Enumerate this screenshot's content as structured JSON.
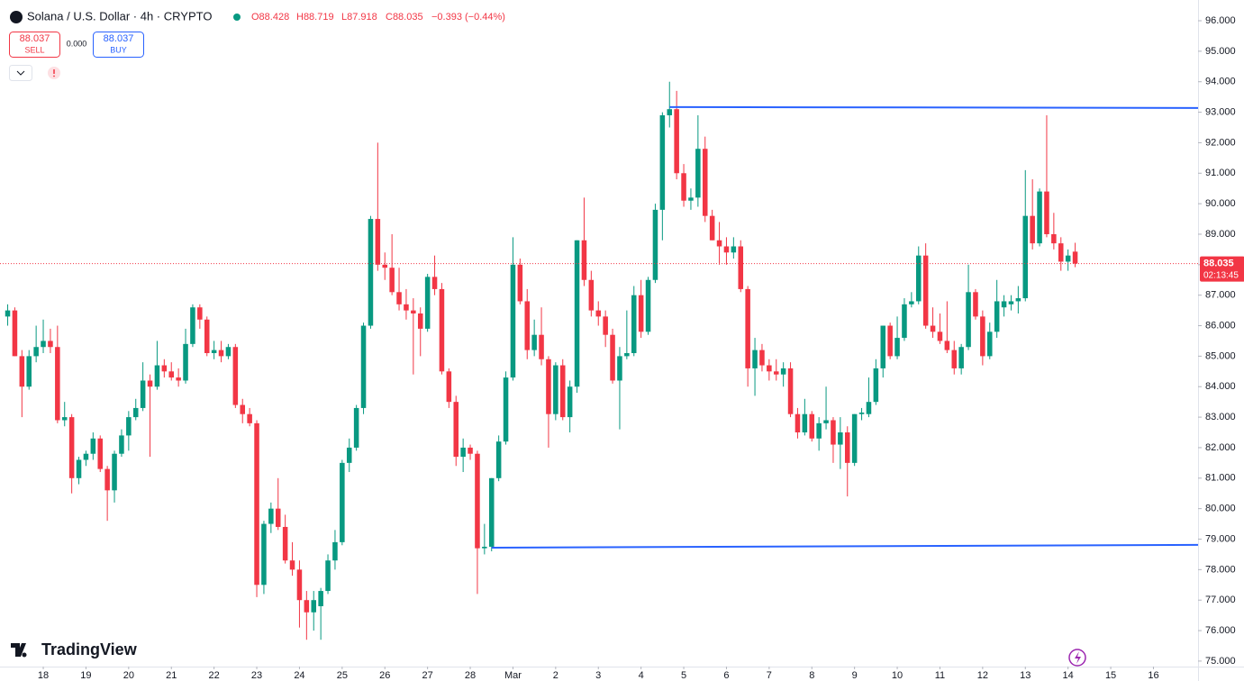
{
  "header": {
    "symbol": "Solana / U.S. Dollar · 4h · CRYPTO",
    "open": "O88.428",
    "high": "H88.719",
    "low": "L87.918",
    "close": "C88.035",
    "change": "−0.393 (−0.44%)"
  },
  "trade": {
    "sell_price": "88.037",
    "sell_label": "SELL",
    "spread": "0.000",
    "buy_price": "88.037",
    "buy_label": "BUY"
  },
  "logo": "TradingView",
  "chart_data": {
    "type": "candlestick",
    "up_color": "#089981",
    "down_color": "#f23645",
    "xlim": [
      -1.08,
      167.27
    ],
    "ylim": [
      74.82,
      96.68
    ],
    "xticks": [
      {
        "value": 5,
        "label": "18"
      },
      {
        "value": 11,
        "label": "19"
      },
      {
        "value": 17,
        "label": "20"
      },
      {
        "value": 23,
        "label": "21"
      },
      {
        "value": 29,
        "label": "22"
      },
      {
        "value": 35,
        "label": "23"
      },
      {
        "value": 41,
        "label": "24"
      },
      {
        "value": 47,
        "label": "25"
      },
      {
        "value": 53,
        "label": "26"
      },
      {
        "value": 59,
        "label": "27"
      },
      {
        "value": 65,
        "label": "28"
      },
      {
        "value": 71,
        "label": "Mar"
      },
      {
        "value": 77,
        "label": "2"
      },
      {
        "value": 83,
        "label": "3"
      },
      {
        "value": 89,
        "label": "4"
      },
      {
        "value": 95,
        "label": "5"
      },
      {
        "value": 101,
        "label": "6"
      },
      {
        "value": 107,
        "label": "7"
      },
      {
        "value": 113,
        "label": "8"
      },
      {
        "value": 119,
        "label": "9"
      },
      {
        "value": 125,
        "label": "10"
      },
      {
        "value": 131,
        "label": "11"
      },
      {
        "value": 137,
        "label": "12"
      },
      {
        "value": 143,
        "label": "13"
      },
      {
        "value": 149,
        "label": "14"
      },
      {
        "value": 155,
        "label": "15"
      },
      {
        "value": 161,
        "label": "16"
      }
    ],
    "yticks": [
      {
        "value": 75,
        "label": "75.000"
      },
      {
        "value": 76,
        "label": "76.000"
      },
      {
        "value": 77,
        "label": "77.000"
      },
      {
        "value": 78,
        "label": "78.000"
      },
      {
        "value": 79,
        "label": "79.000"
      },
      {
        "value": 80,
        "label": "80.000"
      },
      {
        "value": 81,
        "label": "81.000"
      },
      {
        "value": 82,
        "label": "82.000"
      },
      {
        "value": 83,
        "label": "83.000"
      },
      {
        "value": 84,
        "label": "84.000"
      },
      {
        "value": 85,
        "label": "85.000"
      },
      {
        "value": 86,
        "label": "86.000"
      },
      {
        "value": 87,
        "label": "87.000"
      },
      {
        "value": 88,
        "label": "88.000"
      },
      {
        "value": 89,
        "label": "89.000"
      },
      {
        "value": 90,
        "label": "90.000"
      },
      {
        "value": 91,
        "label": "91.000"
      },
      {
        "value": 92,
        "label": "92.000"
      },
      {
        "value": 93,
        "label": "93.000"
      },
      {
        "value": 94,
        "label": "94.000"
      },
      {
        "value": 95,
        "label": "95.000"
      },
      {
        "value": 96,
        "label": "96.000"
      }
    ],
    "last_price": {
      "value": 88.035,
      "label": "88.035"
    },
    "countdown": "02:13:45",
    "last_price_color": "#f23645",
    "lines_color": "#2962ff",
    "lines": [
      {
        "start": 93,
        "values": [
          93.17,
          93.14
        ]
      },
      {
        "start": 68,
        "values": [
          78.72,
          78.81
        ]
      }
    ],
    "candles": [
      [
        86.3,
        86.7,
        86.0,
        86.5
      ],
      [
        86.5,
        86.6,
        85.0,
        85.0
      ],
      [
        85.0,
        85.2,
        83.0,
        84.0
      ],
      [
        84.0,
        85.2,
        83.9,
        85.0
      ],
      [
        85.0,
        86.0,
        84.8,
        85.3
      ],
      [
        85.3,
        86.2,
        85.1,
        85.5
      ],
      [
        85.5,
        85.9,
        85.1,
        85.3
      ],
      [
        85.3,
        86.0,
        82.8,
        82.9
      ],
      [
        82.9,
        83.5,
        82.7,
        83.0
      ],
      [
        83.0,
        83.1,
        80.5,
        81.0
      ],
      [
        81.0,
        81.7,
        80.8,
        81.6
      ],
      [
        81.6,
        81.9,
        81.4,
        81.8
      ],
      [
        81.8,
        82.5,
        81.6,
        82.3
      ],
      [
        82.3,
        82.4,
        81.2,
        81.3
      ],
      [
        81.3,
        81.4,
        79.6,
        80.6
      ],
      [
        80.6,
        81.9,
        80.2,
        81.8
      ],
      [
        81.8,
        82.6,
        81.7,
        82.4
      ],
      [
        82.4,
        83.2,
        81.9,
        83.0
      ],
      [
        83.0,
        83.6,
        82.9,
        83.3
      ],
      [
        83.3,
        84.8,
        83.2,
        84.2
      ],
      [
        84.2,
        84.4,
        81.7,
        84.0
      ],
      [
        84.0,
        85.5,
        83.9,
        84.7
      ],
      [
        84.7,
        84.9,
        84.3,
        84.5
      ],
      [
        84.5,
        84.8,
        84.2,
        84.3
      ],
      [
        84.3,
        84.6,
        84.0,
        84.2
      ],
      [
        84.2,
        85.9,
        84.1,
        85.4
      ],
      [
        85.4,
        86.7,
        85.3,
        86.6
      ],
      [
        86.6,
        86.7,
        85.9,
        86.2
      ],
      [
        86.2,
        86.3,
        85.0,
        85.1
      ],
      [
        85.1,
        85.5,
        84.9,
        85.2
      ],
      [
        85.2,
        85.5,
        84.8,
        85.0
      ],
      [
        85.0,
        85.4,
        84.9,
        85.3
      ],
      [
        85.3,
        85.4,
        83.3,
        83.4
      ],
      [
        83.4,
        83.6,
        82.8,
        83.1
      ],
      [
        83.1,
        83.3,
        82.7,
        82.8
      ],
      [
        82.8,
        82.9,
        77.1,
        77.5
      ],
      [
        77.5,
        79.6,
        77.2,
        79.5
      ],
      [
        79.5,
        80.2,
        79.2,
        80.0
      ],
      [
        80.0,
        81.0,
        79.3,
        79.4
      ],
      [
        79.4,
        79.8,
        78.2,
        78.3
      ],
      [
        78.3,
        78.9,
        77.8,
        78.0
      ],
      [
        78.0,
        78.3,
        76.1,
        77.0
      ],
      [
        77.0,
        77.3,
        75.7,
        76.6
      ],
      [
        76.6,
        77.3,
        76.0,
        77.0
      ],
      [
        76.8,
        77.4,
        75.7,
        77.3
      ],
      [
        77.3,
        78.5,
        77.2,
        78.3
      ],
      [
        78.3,
        79.3,
        78.0,
        78.9
      ],
      [
        78.9,
        81.6,
        78.8,
        81.5
      ],
      [
        81.5,
        82.3,
        81.2,
        82.0
      ],
      [
        82.0,
        83.4,
        81.9,
        83.3
      ],
      [
        83.3,
        86.1,
        83.1,
        86.0
      ],
      [
        86.0,
        89.6,
        85.9,
        89.5
      ],
      [
        89.5,
        92.0,
        87.8,
        88.0
      ],
      [
        88.0,
        88.4,
        87.5,
        87.9
      ],
      [
        87.9,
        89.0,
        87.0,
        87.1
      ],
      [
        87.1,
        87.9,
        86.5,
        86.7
      ],
      [
        86.7,
        87.2,
        86.2,
        86.5
      ],
      [
        86.5,
        86.9,
        84.4,
        86.4
      ],
      [
        86.4,
        86.6,
        85.0,
        85.9
      ],
      [
        85.9,
        87.7,
        85.8,
        87.6
      ],
      [
        87.6,
        88.3,
        87.0,
        87.2
      ],
      [
        87.2,
        87.4,
        84.4,
        84.5
      ],
      [
        84.5,
        84.6,
        83.3,
        83.5
      ],
      [
        83.5,
        83.7,
        81.4,
        81.7
      ],
      [
        81.7,
        82.3,
        81.2,
        82.0
      ],
      [
        82.0,
        82.1,
        81.6,
        81.8
      ],
      [
        81.8,
        81.9,
        77.2,
        78.7
      ],
      [
        78.7,
        79.5,
        78.5,
        78.75
      ],
      [
        78.75,
        81.0,
        78.6,
        81.0
      ],
      [
        81.0,
        82.4,
        80.9,
        82.2
      ],
      [
        82.2,
        84.5,
        82.1,
        84.3
      ],
      [
        84.3,
        88.9,
        84.2,
        88.0
      ],
      [
        88.0,
        88.2,
        86.7,
        86.8
      ],
      [
        86.8,
        87.2,
        84.9,
        85.2
      ],
      [
        85.2,
        86.2,
        85.0,
        85.7
      ],
      [
        85.7,
        86.6,
        84.7,
        84.9
      ],
      [
        84.9,
        85.0,
        82.0,
        83.1
      ],
      [
        83.1,
        84.8,
        82.9,
        84.7
      ],
      [
        84.7,
        84.9,
        82.9,
        83.0
      ],
      [
        83.0,
        84.2,
        82.5,
        84.0
      ],
      [
        84.0,
        88.8,
        83.8,
        88.8
      ],
      [
        88.8,
        90.2,
        87.3,
        87.5
      ],
      [
        87.5,
        87.8,
        86.3,
        86.5
      ],
      [
        86.5,
        86.8,
        86.0,
        86.3
      ],
      [
        86.3,
        86.5,
        85.3,
        85.7
      ],
      [
        85.7,
        85.9,
        84.1,
        84.2
      ],
      [
        84.2,
        85.3,
        82.6,
        85.0
      ],
      [
        85.0,
        86.5,
        84.9,
        85.1
      ],
      [
        85.1,
        87.3,
        85.0,
        87.0
      ],
      [
        87.0,
        87.5,
        85.6,
        85.8
      ],
      [
        85.8,
        87.6,
        85.7,
        87.5
      ],
      [
        87.5,
        90.0,
        87.4,
        89.8
      ],
      [
        89.8,
        93.0,
        88.8,
        92.9
      ],
      [
        92.9,
        94.0,
        92.5,
        93.1
      ],
      [
        93.1,
        93.7,
        90.8,
        91.0
      ],
      [
        91.0,
        91.3,
        89.9,
        90.1
      ],
      [
        90.1,
        90.5,
        89.8,
        90.2
      ],
      [
        90.2,
        92.9,
        89.9,
        91.8
      ],
      [
        91.8,
        92.2,
        89.4,
        89.6
      ],
      [
        89.6,
        89.8,
        88.8,
        88.8
      ],
      [
        88.8,
        89.4,
        88.0,
        88.6
      ],
      [
        88.6,
        88.9,
        88.0,
        88.4
      ],
      [
        88.4,
        88.9,
        88.2,
        88.6
      ],
      [
        88.6,
        88.8,
        87.1,
        87.2
      ],
      [
        87.2,
        87.3,
        84.0,
        84.6
      ],
      [
        84.6,
        85.6,
        83.7,
        85.2
      ],
      [
        85.2,
        85.4,
        84.5,
        84.7
      ],
      [
        84.7,
        84.9,
        84.2,
        84.5
      ],
      [
        84.5,
        84.9,
        84.2,
        84.4
      ],
      [
        84.4,
        84.8,
        84.0,
        84.6
      ],
      [
        84.6,
        84.8,
        83.0,
        83.1
      ],
      [
        83.1,
        83.3,
        82.3,
        82.5
      ],
      [
        82.5,
        83.6,
        82.4,
        83.1
      ],
      [
        83.1,
        83.2,
        82.2,
        82.3
      ],
      [
        82.3,
        83.0,
        81.9,
        82.8
      ],
      [
        82.8,
        84.0,
        82.6,
        82.9
      ],
      [
        82.9,
        83.0,
        81.5,
        82.1
      ],
      [
        82.1,
        83.0,
        81.3,
        82.5
      ],
      [
        82.5,
        82.7,
        80.4,
        81.5
      ],
      [
        81.5,
        83.1,
        81.4,
        83.1
      ],
      [
        83.1,
        83.3,
        82.9,
        83.15
      ],
      [
        83.1,
        84.3,
        83.0,
        83.5
      ],
      [
        83.5,
        84.9,
        83.4,
        84.6
      ],
      [
        84.6,
        86.0,
        84.3,
        86.0
      ],
      [
        86.0,
        86.1,
        84.9,
        85.0
      ],
      [
        85.0,
        86.3,
        84.9,
        85.6
      ],
      [
        85.6,
        86.9,
        85.5,
        86.7
      ],
      [
        86.7,
        87.1,
        86.6,
        86.8
      ],
      [
        86.8,
        88.6,
        86.7,
        88.3
      ],
      [
        88.3,
        88.7,
        85.9,
        86.0
      ],
      [
        86.0,
        86.6,
        85.6,
        85.8
      ],
      [
        85.8,
        86.4,
        85.4,
        85.5
      ],
      [
        85.5,
        86.8,
        85.1,
        85.2
      ],
      [
        85.2,
        85.5,
        84.4,
        84.6
      ],
      [
        84.6,
        85.4,
        84.4,
        85.3
      ],
      [
        85.3,
        88.0,
        85.2,
        87.1
      ],
      [
        87.1,
        87.2,
        86.2,
        86.3
      ],
      [
        86.3,
        86.5,
        84.7,
        85.0
      ],
      [
        85.0,
        86.1,
        84.9,
        85.8
      ],
      [
        85.8,
        87.5,
        85.6,
        86.8
      ],
      [
        86.6,
        87.0,
        86.3,
        86.8
      ],
      [
        86.7,
        87.0,
        86.5,
        86.8
      ],
      [
        86.8,
        87.3,
        86.4,
        86.9
      ],
      [
        86.9,
        91.1,
        86.8,
        89.6
      ],
      [
        89.6,
        90.8,
        88.5,
        88.7
      ],
      [
        88.7,
        90.5,
        88.6,
        90.4
      ],
      [
        90.4,
        92.9,
        88.9,
        89.0
      ],
      [
        89.0,
        89.7,
        88.5,
        88.7
      ],
      [
        88.7,
        88.9,
        87.8,
        88.1
      ],
      [
        88.1,
        88.5,
        87.8,
        88.3
      ],
      [
        88.428,
        88.719,
        87.918,
        88.035
      ]
    ]
  }
}
